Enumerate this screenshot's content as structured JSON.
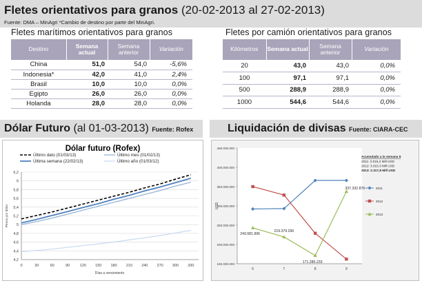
{
  "header": {
    "title_bold": "Fletes orientativos para granos",
    "title_range": "(20-02-2013 al 27-02-2013)",
    "source": "Fuente: DMA – MinAgri   *Cambio de destino por parte del MinAgri."
  },
  "maritime": {
    "title": "Fletes marítimos orientativos para granos",
    "headers": [
      "Destino",
      "Semana actual",
      "Semana anterior",
      "Variación"
    ],
    "rows": [
      [
        "China",
        "51,0",
        "54,0",
        "-5,6%"
      ],
      [
        "Indonesia*",
        "42,0",
        "41,0",
        "2,4%"
      ],
      [
        "Brasil",
        "10,0",
        "10,0",
        "0,0%"
      ],
      [
        "Egipto",
        "26,0",
        "26,0",
        "0,0%"
      ],
      [
        "Holanda",
        "28,0",
        "28,0",
        "0,0%"
      ]
    ]
  },
  "truck": {
    "title": "Fletes por camión orientativos para granos",
    "headers": [
      "Kilómetros",
      "Semana actual",
      "Semana anterior",
      "Variación"
    ],
    "rows": [
      [
        "20",
        "43,0",
        "43,0",
        "0,0%"
      ],
      [
        "100",
        "97,1",
        "97,1",
        "0,0%"
      ],
      [
        "500",
        "288,9",
        "288,9",
        "0,0%"
      ],
      [
        "1000",
        "544,6",
        "544,6",
        "0,0%"
      ]
    ]
  },
  "dolar_section": {
    "title_bold": "Dólar Futuro",
    "title_light": "(al 01-03-2013)",
    "source": "Fuente: Rofex"
  },
  "divisas_section": {
    "title": "Liquidación de divisas",
    "source": "Fuente: CIARA-CEC"
  },
  "chart_data": [
    {
      "type": "line",
      "title": "Dólar futuro (Rofex)",
      "xlabel": "Días a vencimiento",
      "ylabel": "Pesos por dólar",
      "ylim": [
        4.2,
        6.2
      ],
      "yticks": [
        "4,2",
        "4,4",
        "4,6",
        "4,8",
        "5",
        "5,2",
        "5,4",
        "5,6",
        "5,8",
        "6",
        "6,2"
      ],
      "xticks": [
        "0",
        "30",
        "60",
        "90",
        "120",
        "150",
        "180",
        "210",
        "240",
        "270",
        "300",
        "330"
      ],
      "xlim": [
        0,
        345
      ],
      "legend": "top",
      "series": [
        {
          "name": "Último dato (01/03/13)",
          "color": "#000000",
          "dashed": true,
          "width": 1.6,
          "points": [
            [
              0,
              5.13
            ],
            [
              30,
              5.21
            ],
            [
              60,
              5.29
            ],
            [
              90,
              5.38
            ],
            [
              120,
              5.47
            ],
            [
              150,
              5.56
            ],
            [
              180,
              5.65
            ],
            [
              210,
              5.74
            ],
            [
              240,
              5.84
            ],
            [
              270,
              5.93
            ],
            [
              300,
              6.04
            ],
            [
              330,
              6.14
            ]
          ]
        },
        {
          "name": "Último mes (01/02/13)",
          "color": "#95b3d7",
          "dashed": false,
          "width": 1.3,
          "points": [
            [
              0,
              5.0
            ],
            [
              30,
              5.07
            ],
            [
              60,
              5.15
            ],
            [
              90,
              5.24
            ],
            [
              120,
              5.33
            ],
            [
              150,
              5.42
            ],
            [
              180,
              5.51
            ],
            [
              210,
              5.6
            ],
            [
              240,
              5.69
            ],
            [
              270,
              5.78
            ],
            [
              300,
              5.88
            ],
            [
              330,
              5.97
            ]
          ]
        },
        {
          "name": "Última semana (22/02/13)",
          "color": "#4f81bd",
          "dashed": false,
          "width": 1.8,
          "points": [
            [
              0,
              5.04
            ],
            [
              30,
              5.12
            ],
            [
              60,
              5.21
            ],
            [
              90,
              5.3
            ],
            [
              120,
              5.39
            ],
            [
              150,
              5.48
            ],
            [
              180,
              5.58
            ],
            [
              210,
              5.67
            ],
            [
              240,
              5.77
            ],
            [
              270,
              5.86
            ],
            [
              300,
              5.96
            ],
            [
              330,
              6.06
            ]
          ]
        },
        {
          "name": "Último año (01/03/12)",
          "color": "#c6d9f0",
          "dashed": false,
          "width": 1.2,
          "points": [
            [
              0,
              4.38
            ],
            [
              30,
              4.41
            ],
            [
              60,
              4.44
            ],
            [
              90,
              4.48
            ],
            [
              120,
              4.52
            ],
            [
              150,
              4.56
            ],
            [
              180,
              4.6
            ],
            [
              210,
              4.65
            ],
            [
              240,
              4.7
            ],
            [
              270,
              4.75
            ],
            [
              300,
              4.81
            ],
            [
              330,
              4.87
            ]
          ]
        }
      ]
    },
    {
      "type": "line",
      "title": "",
      "categories": [
        "6",
        "7",
        "8",
        "9"
      ],
      "ylabel": "USD",
      "ylim": [
        150000000,
        450000000
      ],
      "yticks": [
        "150.000.000",
        "200.000.000",
        "250.000.000",
        "300.000.000",
        "350.000.000",
        "400.000.000",
        "450.000.000"
      ],
      "legend": "right",
      "series": [
        {
          "name": "2011",
          "color": "#4f81bd",
          "marker": "diamond",
          "values": [
            292000000,
            293000000,
            366000000,
            366000000
          ]
        },
        {
          "name": "2012",
          "color": "#c0504d",
          "marker": "square",
          "values": [
            350000000,
            328000000,
            229000000,
            162000000
          ]
        },
        {
          "name": "2013",
          "color": "#9bbb59",
          "marker": "triangle",
          "values": [
            243081996,
            219379290,
            171285233,
            337332876
          ]
        }
      ],
      "data_labels": [
        "243.081.996",
        "219.379.290",
        "171.285.233",
        "337.332.876"
      ],
      "accum": {
        "title": "Acumulado   a la semana  9",
        "lines": [
          "2011:  3.015,2 Mill USD",
          "2012:  3.015,3 Mill USD",
          "2013:  2.317,8 Mill USD"
        ]
      }
    }
  ]
}
